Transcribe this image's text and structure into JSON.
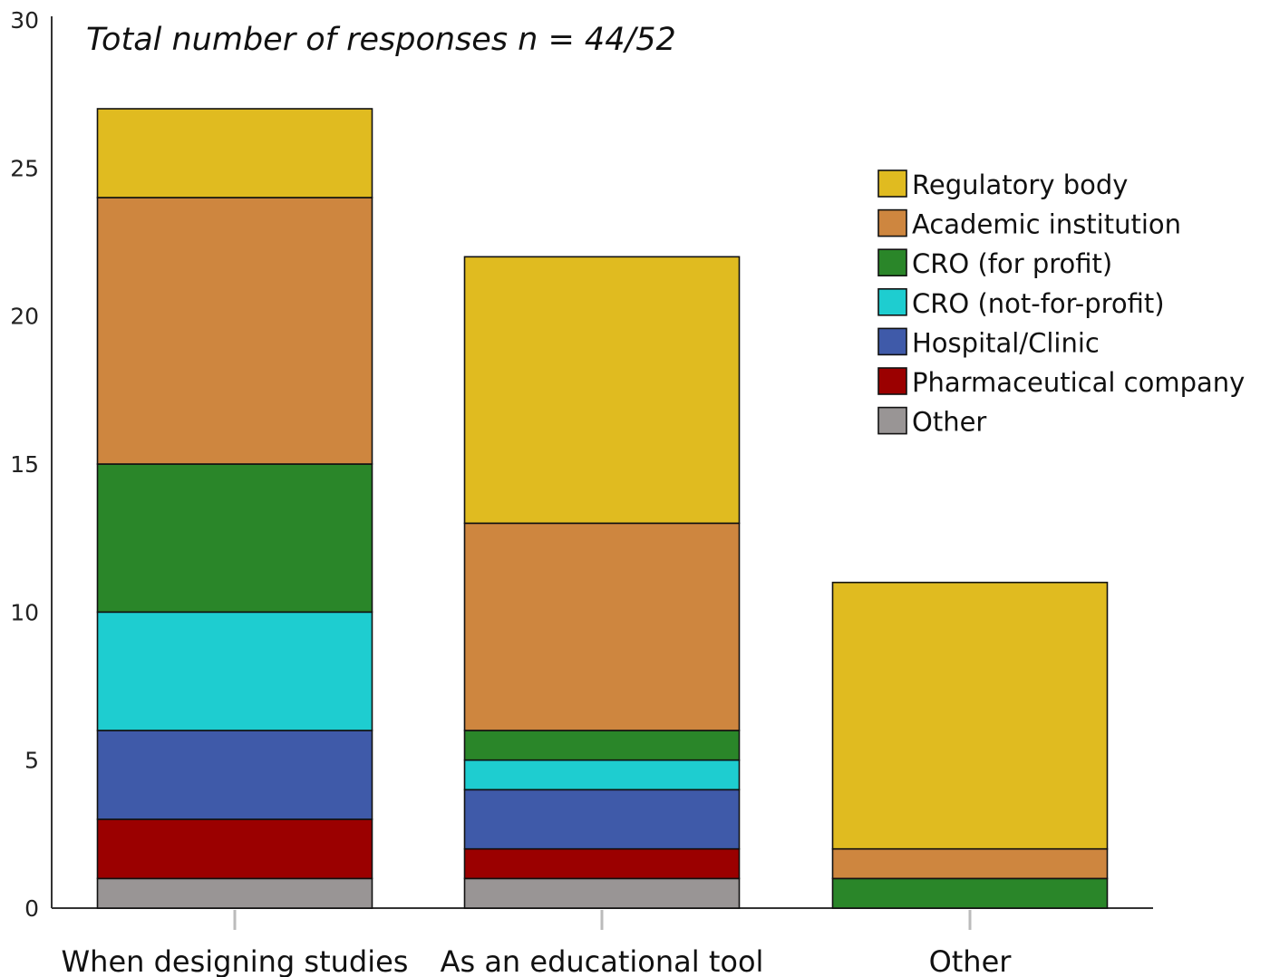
{
  "chart_data": {
    "type": "bar",
    "stacked": true,
    "title": "Total number of responses n = 44/52",
    "xlabel": "",
    "ylabel": "",
    "ylim": [
      0,
      30
    ],
    "yticks": [
      0,
      5,
      10,
      15,
      20,
      25,
      30
    ],
    "grid": false,
    "legend_position": "top-right",
    "categories": [
      "When designing studies",
      "As an educational tool",
      "Other"
    ],
    "series": [
      {
        "name": "Other",
        "color": "#999595",
        "values": [
          1,
          1,
          0
        ]
      },
      {
        "name": "Pharmaceutical company",
        "color": "#9b0000",
        "values": [
          2,
          1,
          0
        ]
      },
      {
        "name": "Hospital/Clinic",
        "color": "#3f5aa9",
        "values": [
          3,
          2,
          0
        ]
      },
      {
        "name": "CRO (not-for-profit)",
        "color": "#1ecdd0",
        "values": [
          4,
          1,
          0
        ]
      },
      {
        "name": "CRO (for profit)",
        "color": "#2a8629",
        "values": [
          5,
          1,
          1
        ]
      },
      {
        "name": "Academic institution",
        "color": "#ce863f",
        "values": [
          9,
          7,
          1
        ]
      },
      {
        "name": "Regulatory body",
        "color": "#e0bb20",
        "values": [
          3,
          9,
          9
        ]
      }
    ],
    "legend_order": [
      "Regulatory body",
      "Academic institution",
      "CRO (for profit)",
      "CRO (not-for-profit)",
      "Hospital/Clinic",
      "Pharmaceutical company",
      "Other"
    ]
  }
}
